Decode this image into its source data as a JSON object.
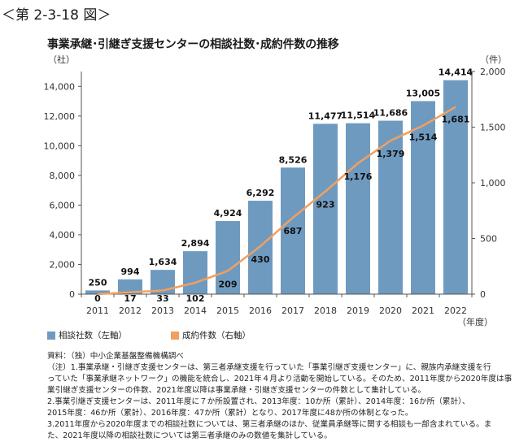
{
  "figure_label": "＜第 2-3-18 図＞",
  "legend": {
    "bar_label": "相談社数（左軸）",
    "line_label": "成約件数（右軸）",
    "bar_color": "#6f9ac0",
    "line_color": "#f0a060"
  },
  "notes": {
    "source": "資料：（独）中小企業基盤整備機構調べ",
    "n1a": "（注）1.事業承継・引継ぎ支援センターは、第三者承継支援を行っていた「事業引継ぎ支援センター」に、親族内承継支援を行",
    "n1b": "っていた「事業承継ネットワーク」の機能を統合し、2021年４月より活動を開始している。そのため、2011年度から2020年度は事",
    "n1c": "業引継ぎ支援センターの件数、2021年度以降は事業承継・引継ぎ支援センターの件数として集計している。",
    "n2a": "2.事業引継ぎ支援センターは、2011年度に７か所設置され、2013年度：10か所（累計）、2014年度：16か所（累計）、",
    "n2b": "2015年度：46か所（累計）、2016年度：47か所（累計）となり、2017年度に48か所の体制となった。",
    "n3a": "3.2011年度から2020年度までの相談社数については、第三者承継のほか、従業員承継等に関する相談も一部含まれている。ま",
    "n3b": "た、2021年度以降の相談社数については第三者承継のみの数値を集計している。"
  },
  "chart_data": {
    "type": "bar",
    "title": "事業承継･引継ぎ支援センターの相談社数･成約件数の推移",
    "left_unit": "（社）",
    "right_unit": "（件）",
    "x_unit": "（年度）",
    "categories": [
      "2011",
      "2012",
      "2013",
      "2014",
      "2015",
      "2016",
      "2017",
      "2018",
      "2019",
      "2020",
      "2021",
      "2022"
    ],
    "series": [
      {
        "name": "相談社数（左軸）",
        "type": "bar",
        "axis": "left",
        "values": [
          250,
          994,
          1634,
          2894,
          4924,
          6292,
          8526,
          11477,
          11514,
          11686,
          13005,
          14414
        ],
        "labels": [
          "250",
          "994",
          "1,634",
          "2,894",
          "4,924",
          "6,292",
          "8,526",
          "11,477",
          "11,514",
          "11,686",
          "13,005",
          "14,414"
        ]
      },
      {
        "name": "成約件数（右軸）",
        "type": "line",
        "axis": "right",
        "values": [
          0,
          17,
          33,
          102,
          209,
          430,
          687,
          923,
          1176,
          1379,
          1514,
          1681
        ],
        "labels": [
          "0",
          "17",
          "33",
          "102",
          "209",
          "430",
          "687",
          "923",
          "1,176",
          "1,379",
          "1,514",
          "1,681"
        ]
      }
    ],
    "ylim_left": [
      0,
      15000
    ],
    "yticks_left": [
      "0",
      "2,000",
      "4,000",
      "6,000",
      "8,000",
      "10,000",
      "12,000",
      "14,000"
    ],
    "ylim_right": [
      0,
      2000
    ],
    "yticks_right": [
      "0",
      "500",
      "1,000",
      "1,500",
      "2,000"
    ],
    "grid": false,
    "legend_position": "bottom-left"
  }
}
